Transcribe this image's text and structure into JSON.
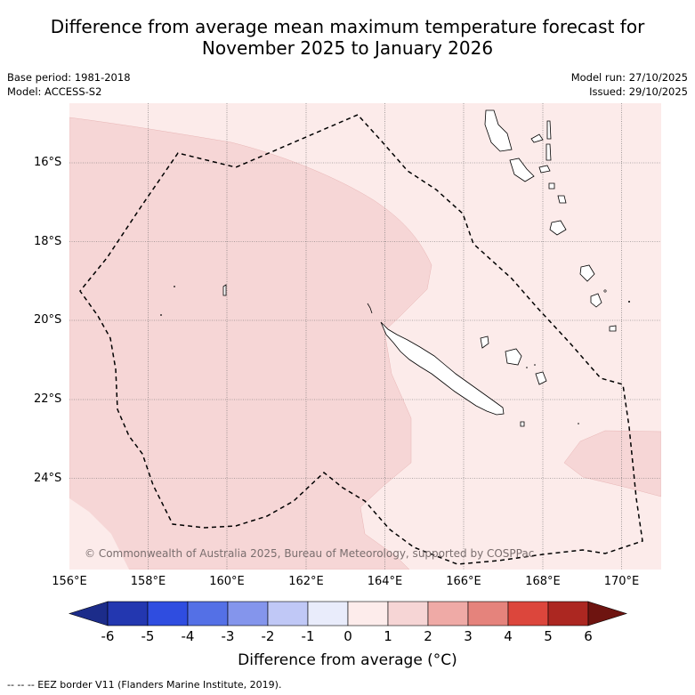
{
  "title_line1": "Difference from average mean maximum temperature forecast for",
  "title_line2": "November 2025 to January 2026",
  "base_period": "Base period: 1981-2018",
  "model": "Model: ACCESS-S2",
  "model_run": "Model run: 27/10/2025",
  "issued": "Issued: 29/10/2025",
  "copyright": "© Commonwealth of Australia 2025, Bureau of Meteorology, supported by COSPPac",
  "lat_labels": [
    "16°S",
    "18°S",
    "20°S",
    "22°S",
    "24°S"
  ],
  "lon_labels": [
    "156°E",
    "158°E",
    "160°E",
    "162°E",
    "164°E",
    "166°E",
    "168°E",
    "170°E"
  ],
  "colorbar": {
    "ticks": [
      "-6",
      "-5",
      "-4",
      "-3",
      "-2",
      "-1",
      "0",
      "1",
      "2",
      "3",
      "4",
      "5",
      "6"
    ],
    "colors": [
      "#1c2c8a",
      "#2337b0",
      "#2f4de0",
      "#5470e6",
      "#8495ec",
      "#c0c8f6",
      "#e9ecfb",
      "#fdeceb",
      "#f6d5d5",
      "#efaaa6",
      "#e5837c",
      "#dc463c",
      "#ac2721",
      "#6e1410"
    ],
    "label": "Difference from average (°C)"
  },
  "legend_text": "-- -- -- EEZ border V11 (Flanders Marine Institute, 2019)."
}
